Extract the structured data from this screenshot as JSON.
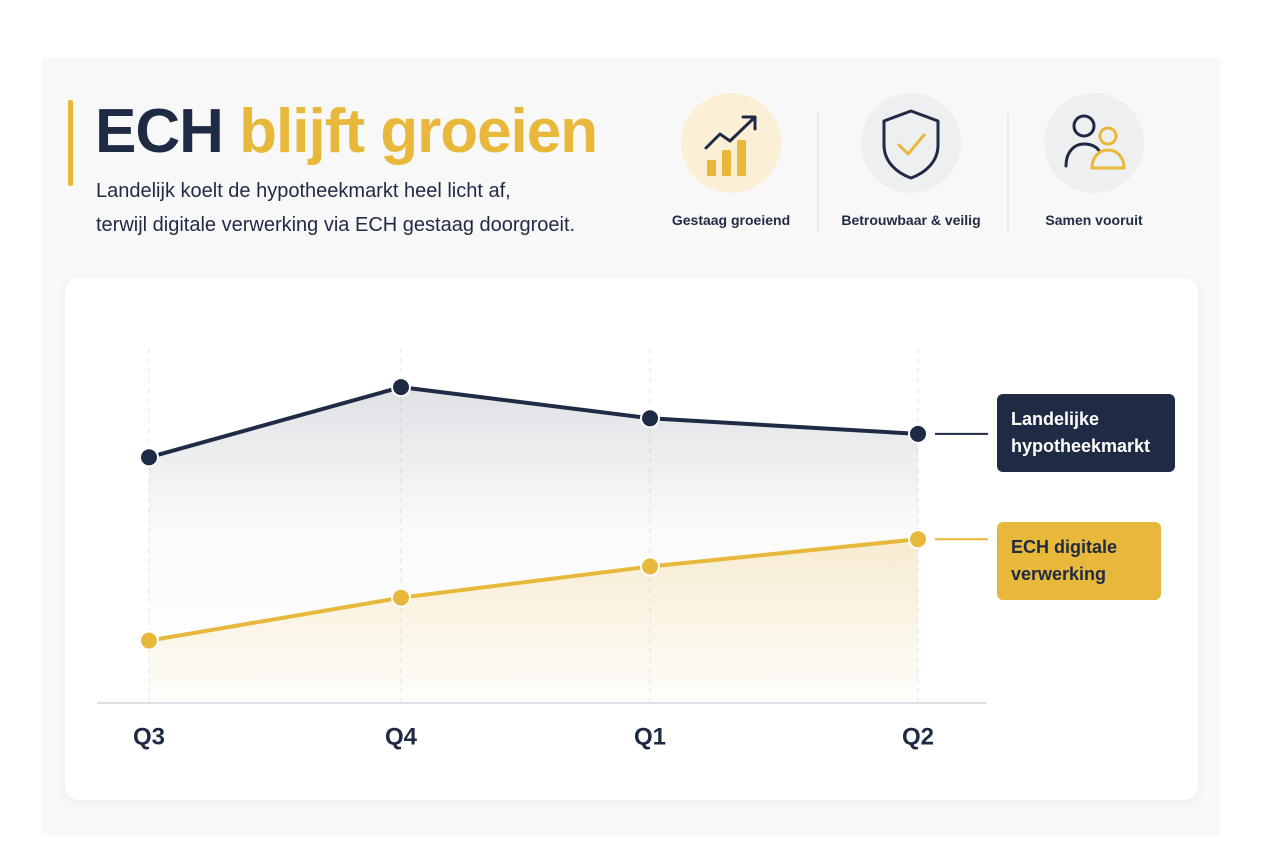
{
  "header": {
    "title": {
      "lead": "ECH",
      "highlight": "blijft groeien"
    },
    "subtitle": [
      "Landelijk koelt de hypotheekmarkt heel licht af,",
      "terwijl digitale verwerking via ECH gestaag doorgroeit."
    ]
  },
  "features": [
    "Gestaag groeiend",
    "Betrouwbaar & veilig",
    "Samen vooruit"
  ],
  "chart_data": {
    "type": "line",
    "categories": [
      "Q3",
      "Q4",
      "Q1",
      "Q2"
    ],
    "series": [
      {
        "name": "Landelijke hypotheekmarkt",
        "color": "#1f2a44",
        "values": [
          63,
          81,
          73,
          69
        ]
      },
      {
        "name": "ECH digitale verwerking",
        "color": "#e8b83a",
        "values": [
          16,
          27,
          35,
          42
        ]
      }
    ],
    "ylim": [
      0,
      100
    ],
    "grid": true
  }
}
